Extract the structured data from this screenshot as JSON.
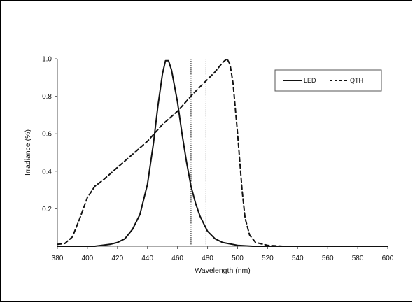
{
  "chart_data": {
    "type": "line",
    "title": "",
    "xlabel": "Wavelength (nm)",
    "ylabel": "Irradiance (%)",
    "xlim": [
      380,
      600
    ],
    "ylim": [
      0,
      1.0
    ],
    "x_ticks": [
      380,
      400,
      420,
      440,
      460,
      480,
      500,
      520,
      540,
      560,
      580,
      600
    ],
    "y_ticks": [
      0.2,
      0.4,
      0.6,
      0.8,
      1.0
    ],
    "y_tick_labels": [
      "0.2",
      "0.4",
      "0.6",
      "0.8",
      "1.0"
    ],
    "grid": false,
    "legend_position": "top-right",
    "vertical_lines": [
      469,
      479
    ],
    "series": [
      {
        "name": "LED",
        "line_style": "solid",
        "color": "#111111",
        "points": [
          [
            380,
            0.0
          ],
          [
            405,
            0.0
          ],
          [
            415,
            0.01
          ],
          [
            420,
            0.02
          ],
          [
            425,
            0.04
          ],
          [
            430,
            0.09
          ],
          [
            435,
            0.17
          ],
          [
            440,
            0.33
          ],
          [
            444,
            0.55
          ],
          [
            447,
            0.75
          ],
          [
            450,
            0.92
          ],
          [
            452,
            0.99
          ],
          [
            454,
            0.99
          ],
          [
            456,
            0.94
          ],
          [
            460,
            0.77
          ],
          [
            463,
            0.6
          ],
          [
            466,
            0.45
          ],
          [
            469,
            0.32
          ],
          [
            472,
            0.23
          ],
          [
            475,
            0.16
          ],
          [
            480,
            0.08
          ],
          [
            485,
            0.04
          ],
          [
            490,
            0.02
          ],
          [
            500,
            0.005
          ],
          [
            510,
            0.0
          ],
          [
            600,
            0.0
          ]
        ]
      },
      {
        "name": "QTH",
        "line_style": "dashed",
        "color": "#111111",
        "points": [
          [
            380,
            0.01
          ],
          [
            385,
            0.015
          ],
          [
            390,
            0.05
          ],
          [
            395,
            0.15
          ],
          [
            400,
            0.26
          ],
          [
            405,
            0.32
          ],
          [
            410,
            0.35
          ],
          [
            420,
            0.42
          ],
          [
            430,
            0.49
          ],
          [
            440,
            0.56
          ],
          [
            450,
            0.65
          ],
          [
            460,
            0.72
          ],
          [
            470,
            0.81
          ],
          [
            480,
            0.89
          ],
          [
            485,
            0.93
          ],
          [
            490,
            0.98
          ],
          [
            493,
            1.0
          ],
          [
            495,
            0.97
          ],
          [
            497,
            0.87
          ],
          [
            500,
            0.6
          ],
          [
            503,
            0.3
          ],
          [
            505,
            0.15
          ],
          [
            508,
            0.06
          ],
          [
            512,
            0.02
          ],
          [
            520,
            0.005
          ],
          [
            530,
            0.0
          ],
          [
            600,
            0.0
          ]
        ]
      }
    ]
  }
}
